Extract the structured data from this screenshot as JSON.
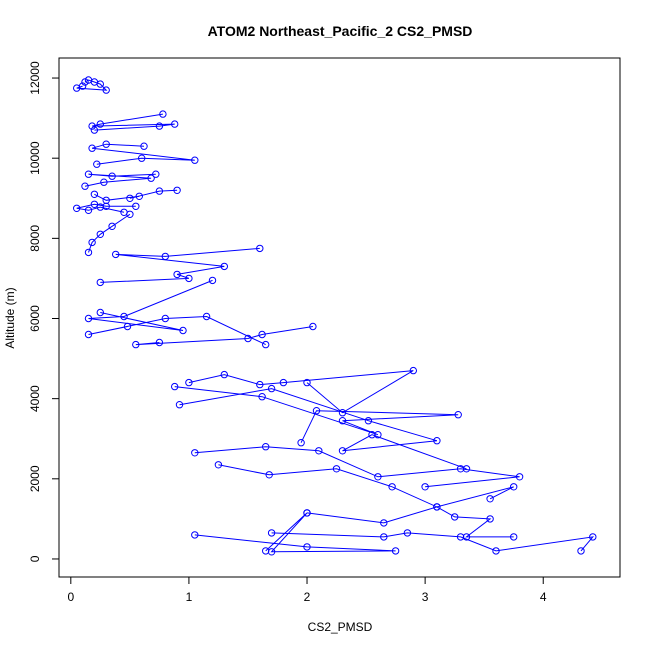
{
  "chart_data": {
    "type": "line",
    "title": "ATOM2 Northeast_Pacific_2 CS2_PMSD",
    "xlabel": "CS2_PMSD",
    "ylabel": "Altitude (m)",
    "xlim": [
      -0.1,
      4.65
    ],
    "ylim": [
      -450,
      12500
    ],
    "xticks": [
      0,
      1,
      2,
      3,
      4
    ],
    "yticks": [
      0,
      2000,
      4000,
      6000,
      8000,
      10000,
      12000
    ],
    "grid": false,
    "marker": "open-circle",
    "line_color": "#0000ff",
    "series": [
      {
        "x": [
          0.12,
          0.15,
          0.2,
          0.25,
          0.3,
          0.05,
          0.1
        ],
        "y": [
          11900,
          11950,
          11900,
          11850,
          11700,
          11750,
          11800
        ]
      },
      {
        "x": [
          0.78,
          0.25,
          0.18,
          0.88,
          0.75,
          0.2
        ],
        "y": [
          11100,
          10850,
          10800,
          10850,
          10800,
          10700
        ]
      },
      {
        "x": [
          0.62,
          0.3,
          0.18,
          1.05,
          0.6,
          0.22
        ],
        "y": [
          10300,
          10350,
          10250,
          9950,
          10000,
          9850
        ]
      },
      {
        "x": [
          0.72,
          0.35,
          0.15,
          0.68,
          0.28,
          0.12
        ],
        "y": [
          9600,
          9550,
          9600,
          9500,
          9400,
          9300
        ]
      },
      {
        "x": [
          0.9,
          0.75,
          0.5,
          0.58,
          0.3,
          0.2
        ],
        "y": [
          9200,
          9180,
          9000,
          9050,
          8950,
          9100
        ]
      },
      {
        "x": [
          0.55,
          0.3,
          0.2,
          0.05,
          0.15,
          0.25,
          0.45
        ],
        "y": [
          8800,
          8800,
          8850,
          8750,
          8700,
          8780,
          8650
        ]
      },
      {
        "x": [
          0.5,
          0.35,
          0.25,
          0.18,
          0.15
        ],
        "y": [
          8600,
          8300,
          8100,
          7900,
          7650
        ]
      },
      {
        "x": [
          1.6,
          0.8,
          0.38,
          1.3,
          0.9,
          1.0,
          0.25
        ],
        "y": [
          7750,
          7550,
          7600,
          7300,
          7100,
          7000,
          6900
        ]
      },
      {
        "x": [
          1.2,
          0.45,
          0.15,
          0.95,
          0.25
        ],
        "y": [
          6950,
          6050,
          6000,
          5700,
          6150
        ]
      },
      {
        "x": [
          2.05,
          1.62,
          1.5,
          0.55,
          0.75
        ],
        "y": [
          5800,
          5600,
          5500,
          5350,
          5400
        ]
      },
      {
        "x": [
          1.65,
          1.15,
          0.8,
          0.15,
          0.48
        ],
        "y": [
          5350,
          6050,
          6000,
          5600,
          5800
        ]
      },
      {
        "x": [
          1.0,
          1.3,
          1.6,
          1.8,
          2.9,
          2.3,
          2.0
        ],
        "y": [
          4400,
          4600,
          4350,
          4400,
          4700,
          3650,
          4400
        ]
      },
      {
        "x": [
          0.88,
          1.62,
          2.6,
          2.3,
          3.28,
          2.08,
          1.95
        ],
        "y": [
          4300,
          4050,
          3100,
          3450,
          3600,
          3700,
          2900
        ]
      },
      {
        "x": [
          0.92,
          1.7,
          2.52,
          3.1,
          2.3,
          2.55,
          3.35
        ],
        "y": [
          3850,
          4250,
          3450,
          2950,
          2700,
          3100,
          2250
        ]
      },
      {
        "x": [
          1.05,
          1.65,
          2.1,
          2.6,
          3.3,
          3.8,
          3.0
        ],
        "y": [
          2650,
          2800,
          2700,
          2050,
          2250,
          2050,
          1800
        ]
      },
      {
        "x": [
          1.25,
          1.68,
          2.25,
          2.72,
          3.1,
          3.75,
          3.55
        ],
        "y": [
          2350,
          2100,
          2250,
          1800,
          1300,
          1800,
          1500
        ]
      },
      {
        "x": [
          2.0,
          2.65,
          3.1,
          3.25,
          3.55,
          3.35,
          3.75
        ],
        "y": [
          1150,
          900,
          1300,
          1050,
          1000,
          550,
          550
        ]
      },
      {
        "x": [
          1.7,
          2.65,
          2.85,
          3.3,
          3.6,
          4.42,
          4.32
        ],
        "y": [
          650,
          550,
          650,
          550,
          200,
          550,
          200
        ]
      },
      {
        "x": [
          1.65,
          2.0,
          1.7,
          2.75,
          2.0,
          1.05
        ],
        "y": [
          200,
          1150,
          180,
          200,
          300,
          600
        ]
      }
    ]
  }
}
